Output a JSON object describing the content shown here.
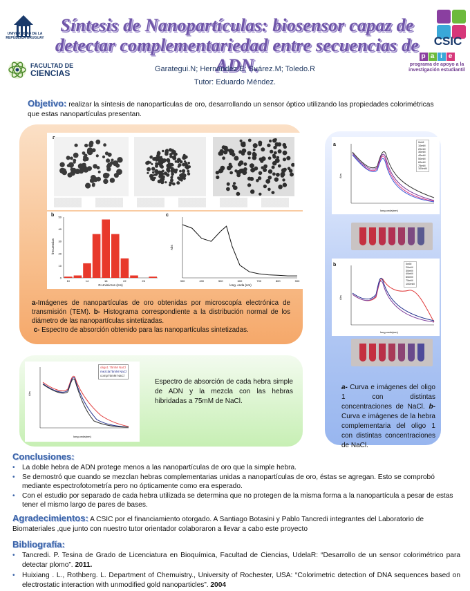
{
  "header": {
    "title": "Síntesis de Nanopartículas: biosensor capaz de detectar complementariedad entre secuencias de ADN.",
    "authors": "Garategui.N; Hernández.E; Suárez.M; Toledo.R",
    "tutor": "Tutor: Eduardo Méndez.",
    "logo_left_top": "UNIVERSIDAD DE LA REPÚBLICA URUGUAY",
    "logo_left_bottom_1": "FACULTAD DE",
    "logo_left_bottom_2": "CIENCIAS",
    "logo_right_top": "CSIC",
    "logo_right_bottom_boxes": [
      "p",
      "a",
      "i",
      "e"
    ],
    "logo_right_bottom_text": "programa de apoyo a la investigación estudiantil"
  },
  "objective": {
    "label": "Objetivo:",
    "text": "realizar la síntesis de nanopartículas de oro, desarrollando un sensor óptico utilizando las propiedades colorimétricas que estas nanopartículas presentan."
  },
  "panel_orange": {
    "tem_label": "a",
    "hist_label": "b",
    "spec_label": "c",
    "caption_a_bold": "a-",
    "caption_a": "Imágenes de  nanopartículas de oro obtenidas por microscopía electrónica de transmisión (TEM). ",
    "caption_b_bold": "b-",
    "caption_b": " Histograma correspondiente a la distribución normal de los diámetro de las nanopartículas sintetizadas.",
    "caption_c_bold": "c-",
    "caption_c": " Espectro de absorción obtenido para las nanopartículas sintetizadas."
  },
  "panel_green": {
    "caption": "Espectro de absorción de cada hebra simple de ADN y la mezcla con las hebras hibridadas a 75mM de NaCl.",
    "legend": [
      "oligo1 75mM NaCl",
      "mezcla75mM NaCl",
      "comp75mM NaCl"
    ]
  },
  "panel_blue": {
    "label_a": "a",
    "label_b": "b",
    "legend_a": [
      "0mM",
      "10mM",
      "20mM",
      "30mM",
      "40mM",
      "50mM",
      "60mM",
      "75mM",
      "100mM"
    ],
    "legend_b": [
      "0mM",
      "20mM",
      "30mM",
      "40mM",
      "60mM",
      "75mM",
      "100mM"
    ],
    "caption_a_bold": "a-",
    "caption_a": " Curva e imágenes del oligo 1 con distintas concentraciones de NaCl. ",
    "caption_b_bold": "b-",
    "caption_b": " Curva e imágenes de la hebra complementaria del oligo 1 con distintas concentraciones de NaCl."
  },
  "conclusions": {
    "label": "Conclusiones:",
    "items": [
      "La doble hebra de ADN protege menos a las nanopartículas de oro que la simple hebra.",
      "Se demostró que cuando se mezclan hebras complementarias unidas a nanopartículas de oro, éstas se agregan. Esto se comprobó mediante espectrofotometría pero no ópticamente como era esperado.",
      "Con el estudio por separado de cada hebra utilizada se determina que no protegen de la misma forma a la nanopartícula a pesar de estas tener el mismo largo de pares de bases."
    ]
  },
  "acknowledgements": {
    "label": "Agradecimientos:",
    "text": "A CSIC por el financiamiento otorgado. A Santiago Botasini y Pablo Tancredi integrantes del Laboratorio de Biomateriales ,que junto con nuestro tutor orientador colaboraron a llevar a cabo este proyecto"
  },
  "bibliography": {
    "label": "Bibliografía:",
    "items": [
      {
        "text": "Tancredi. P. Tesina de Grado de Licenciatura en Bioquímica, Facultad de Ciencias, UdelaR: “Desarrollo de un sensor colorimétrico para detectar plomo”. ",
        "year": "2011."
      },
      {
        "text": "Huixiang . L., Rothberg. L. Department of Chemuistry., University of Rochester, USA: “Colorimetric detection of DNA sequences based on electrostatic interaction with unmodified gold nanoparticles”. ",
        "year": "2004"
      }
    ]
  },
  "colors": {
    "title": "#6f55a8",
    "heading": "#3a63a8",
    "orange_panel": "#f8c08f",
    "green_panel": "#c7efb4",
    "blue_panel": "#b9cdf5",
    "hist_bars": "#e8392b"
  },
  "chart_data": [
    {
      "type": "bar",
      "id": "histogram",
      "ylabel": "frecuencias",
      "xlabel": "D.Unimicron (nm)",
      "categories": [
        10,
        12,
        14,
        16,
        18,
        20,
        22,
        24,
        26,
        28
      ],
      "values": [
        1,
        2,
        12,
        36,
        48,
        36,
        16,
        2,
        0,
        1
      ],
      "ylim": [
        0,
        50
      ]
    },
    {
      "type": "line",
      "id": "spectrum_c",
      "xlabel": "long. onda (nm)",
      "ylabel": "Abs",
      "x": [
        300,
        350,
        400,
        450,
        500,
        530,
        560,
        600,
        650,
        700,
        750,
        800,
        850,
        900
      ],
      "y": [
        1.05,
        0.98,
        0.78,
        0.72,
        0.92,
        1.02,
        0.62,
        0.25,
        0.12,
        0.08,
        0.06,
        0.05,
        0.04,
        0.04
      ]
    }
  ]
}
